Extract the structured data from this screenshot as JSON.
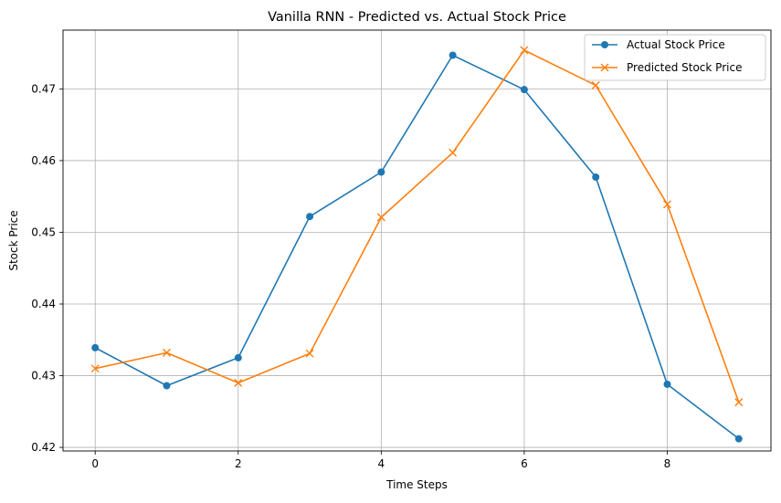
{
  "chart_data": {
    "type": "line",
    "title": "Vanilla RNN - Predicted vs. Actual Stock Price",
    "xlabel": "Time Steps",
    "ylabel": "Stock Price",
    "x": [
      0,
      1,
      2,
      3,
      4,
      5,
      6,
      7,
      8,
      9
    ],
    "xlim": [
      -0.45,
      9.45
    ],
    "ylim": [
      0.4195,
      0.4782
    ],
    "xticks": [
      0,
      2,
      4,
      6,
      8
    ],
    "yticks": [
      0.42,
      0.43,
      0.44,
      0.45,
      0.46,
      0.47
    ],
    "grid": true,
    "legend_position": "top-right",
    "series": [
      {
        "name": "Actual Stock Price",
        "marker": "circle",
        "color": "#1f77b4",
        "values": [
          0.4339,
          0.4286,
          0.4325,
          0.4522,
          0.4584,
          0.4747,
          0.4699,
          0.4577,
          0.4288,
          0.4212
        ]
      },
      {
        "name": "Predicted Stock Price",
        "marker": "x",
        "color": "#ff7f0e",
        "values": [
          0.431,
          0.4332,
          0.429,
          0.4331,
          0.4521,
          0.4611,
          0.4754,
          0.4705,
          0.4539,
          0.4263
        ]
      }
    ]
  }
}
